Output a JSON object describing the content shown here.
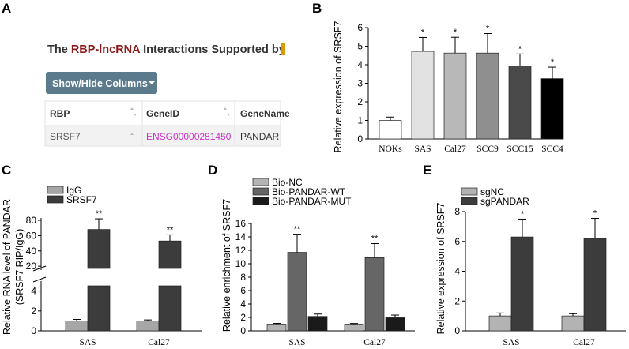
{
  "panel_a": {
    "letter": "A",
    "title_prefix": "The ",
    "title_highlight": "RBP-lncRNA",
    "title_suffix": " Interactions Supported by ",
    "title_color": "#8b1a1a",
    "button_label": "Show/Hide Columns",
    "columns": [
      "RBP",
      "GeneID",
      "GeneName"
    ],
    "row": {
      "rbp": "SRSF7",
      "gene_id": "ENSG00000281450",
      "gene_name": "PANDAR"
    },
    "link_color": "#cc33cc"
  },
  "chart_data": [
    {
      "id": "B",
      "type": "bar",
      "letter": "B",
      "ylabel": "Relative expression of SRSF7",
      "ylim": [
        0,
        6
      ],
      "yticks": [
        0,
        1,
        2,
        3,
        4,
        5,
        6
      ],
      "categories": [
        "NOKs",
        "SAS",
        "Cal27",
        "SCC9",
        "SCC15",
        "SCC4"
      ],
      "values": [
        1.0,
        4.72,
        4.63,
        4.63,
        3.93,
        3.25
      ],
      "errors": [
        0.18,
        0.75,
        0.85,
        1.05,
        0.65,
        0.62
      ],
      "significance": [
        "",
        "*",
        "*",
        "*",
        "*",
        "*"
      ],
      "colors": [
        "#ffffff",
        "#e2e2e2",
        "#b8b8b8",
        "#8f8f8f",
        "#4a4a4a",
        "#000000"
      ]
    },
    {
      "id": "C",
      "type": "bar",
      "letter": "C",
      "ylabel_line1": "Relative RNA level of PANDAR",
      "ylabel_line2": "(SRSF7 RIP/IgG)",
      "ylim": [
        0,
        80
      ],
      "axis_break": [
        5,
        15
      ],
      "yticks": [
        0,
        2,
        4,
        20,
        40,
        60,
        80
      ],
      "categories": [
        "SAS",
        "Cal27"
      ],
      "series": [
        {
          "name": "IgG",
          "values": [
            1.0,
            1.0
          ],
          "errors": [
            0.15,
            0.1
          ],
          "color": "#a6a6a6",
          "significance": [
            "",
            ""
          ]
        },
        {
          "name": "SRSF7",
          "values": [
            68,
            53
          ],
          "errors": [
            14,
            8
          ],
          "color": "#3c3c3c",
          "significance": [
            "**",
            "**"
          ]
        }
      ]
    },
    {
      "id": "D",
      "type": "bar",
      "letter": "D",
      "ylabel": "Relative enrichment of SRSF7",
      "ylim": [
        0,
        16
      ],
      "yticks": [
        0,
        2,
        4,
        6,
        8,
        10,
        12,
        14,
        16
      ],
      "categories": [
        "SAS",
        "Cal27"
      ],
      "series": [
        {
          "name": "Bio-NC",
          "values": [
            1.0,
            1.0
          ],
          "errors": [
            0.12,
            0.1
          ],
          "color": "#b3b3b3",
          "significance": [
            "",
            ""
          ]
        },
        {
          "name": "Bio-PANDAR-WT",
          "values": [
            11.7,
            10.9
          ],
          "errors": [
            2.7,
            2.1
          ],
          "color": "#666666",
          "significance": [
            "**",
            "**"
          ]
        },
        {
          "name": "Bio-PANDAR-MUT",
          "values": [
            2.15,
            1.95
          ],
          "errors": [
            0.35,
            0.4
          ],
          "color": "#1a1a1a",
          "significance": [
            "",
            ""
          ]
        }
      ]
    },
    {
      "id": "E",
      "type": "bar",
      "letter": "E",
      "ylabel": "Relative expression of SRSF7",
      "ylim": [
        0,
        8
      ],
      "yticks": [
        0,
        2,
        4,
        6,
        8
      ],
      "categories": [
        "SAS",
        "Cal27"
      ],
      "series": [
        {
          "name": "sgNC",
          "values": [
            1.0,
            1.0
          ],
          "errors": [
            0.2,
            0.15
          ],
          "color": "#b3b3b3",
          "significance": [
            "",
            ""
          ]
        },
        {
          "name": "sgPANDAR",
          "values": [
            6.3,
            6.2
          ],
          "errors": [
            1.2,
            1.35
          ],
          "color": "#3c3c3c",
          "significance": [
            "*",
            "*"
          ]
        }
      ]
    }
  ]
}
